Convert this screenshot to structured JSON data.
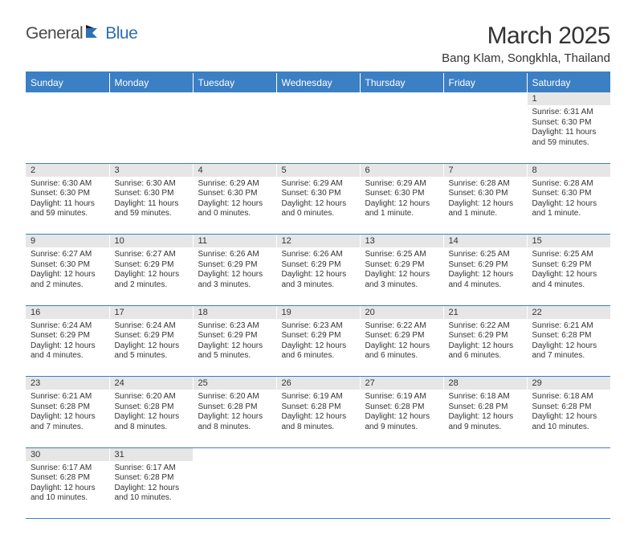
{
  "logo": {
    "text1": "General",
    "text2": "Blue"
  },
  "title": "March 2025",
  "location": "Bang Klam, Songkhla, Thailand",
  "colors": {
    "header_bg": "#3b7fc4",
    "header_text": "#ffffff",
    "daynum_bg": "#e6e6e6",
    "text": "#333333",
    "divider": "#3b7fc4",
    "logo_gray": "#4a4a4a",
    "logo_blue": "#2e6fb5"
  },
  "weekdays": [
    "Sunday",
    "Monday",
    "Tuesday",
    "Wednesday",
    "Thursday",
    "Friday",
    "Saturday"
  ],
  "grid": {
    "first_weekday_index": 6,
    "days_in_month": 31
  },
  "days": {
    "1": {
      "sunrise": "6:31 AM",
      "sunset": "6:30 PM",
      "daylight": "11 hours and 59 minutes."
    },
    "2": {
      "sunrise": "6:30 AM",
      "sunset": "6:30 PM",
      "daylight": "11 hours and 59 minutes."
    },
    "3": {
      "sunrise": "6:30 AM",
      "sunset": "6:30 PM",
      "daylight": "11 hours and 59 minutes."
    },
    "4": {
      "sunrise": "6:29 AM",
      "sunset": "6:30 PM",
      "daylight": "12 hours and 0 minutes."
    },
    "5": {
      "sunrise": "6:29 AM",
      "sunset": "6:30 PM",
      "daylight": "12 hours and 0 minutes."
    },
    "6": {
      "sunrise": "6:29 AM",
      "sunset": "6:30 PM",
      "daylight": "12 hours and 1 minute."
    },
    "7": {
      "sunrise": "6:28 AM",
      "sunset": "6:30 PM",
      "daylight": "12 hours and 1 minute."
    },
    "8": {
      "sunrise": "6:28 AM",
      "sunset": "6:30 PM",
      "daylight": "12 hours and 1 minute."
    },
    "9": {
      "sunrise": "6:27 AM",
      "sunset": "6:30 PM",
      "daylight": "12 hours and 2 minutes."
    },
    "10": {
      "sunrise": "6:27 AM",
      "sunset": "6:29 PM",
      "daylight": "12 hours and 2 minutes."
    },
    "11": {
      "sunrise": "6:26 AM",
      "sunset": "6:29 PM",
      "daylight": "12 hours and 3 minutes."
    },
    "12": {
      "sunrise": "6:26 AM",
      "sunset": "6:29 PM",
      "daylight": "12 hours and 3 minutes."
    },
    "13": {
      "sunrise": "6:25 AM",
      "sunset": "6:29 PM",
      "daylight": "12 hours and 3 minutes."
    },
    "14": {
      "sunrise": "6:25 AM",
      "sunset": "6:29 PM",
      "daylight": "12 hours and 4 minutes."
    },
    "15": {
      "sunrise": "6:25 AM",
      "sunset": "6:29 PM",
      "daylight": "12 hours and 4 minutes."
    },
    "16": {
      "sunrise": "6:24 AM",
      "sunset": "6:29 PM",
      "daylight": "12 hours and 4 minutes."
    },
    "17": {
      "sunrise": "6:24 AM",
      "sunset": "6:29 PM",
      "daylight": "12 hours and 5 minutes."
    },
    "18": {
      "sunrise": "6:23 AM",
      "sunset": "6:29 PM",
      "daylight": "12 hours and 5 minutes."
    },
    "19": {
      "sunrise": "6:23 AM",
      "sunset": "6:29 PM",
      "daylight": "12 hours and 6 minutes."
    },
    "20": {
      "sunrise": "6:22 AM",
      "sunset": "6:29 PM",
      "daylight": "12 hours and 6 minutes."
    },
    "21": {
      "sunrise": "6:22 AM",
      "sunset": "6:29 PM",
      "daylight": "12 hours and 6 minutes."
    },
    "22": {
      "sunrise": "6:21 AM",
      "sunset": "6:28 PM",
      "daylight": "12 hours and 7 minutes."
    },
    "23": {
      "sunrise": "6:21 AM",
      "sunset": "6:28 PM",
      "daylight": "12 hours and 7 minutes."
    },
    "24": {
      "sunrise": "6:20 AM",
      "sunset": "6:28 PM",
      "daylight": "12 hours and 8 minutes."
    },
    "25": {
      "sunrise": "6:20 AM",
      "sunset": "6:28 PM",
      "daylight": "12 hours and 8 minutes."
    },
    "26": {
      "sunrise": "6:19 AM",
      "sunset": "6:28 PM",
      "daylight": "12 hours and 8 minutes."
    },
    "27": {
      "sunrise": "6:19 AM",
      "sunset": "6:28 PM",
      "daylight": "12 hours and 9 minutes."
    },
    "28": {
      "sunrise": "6:18 AM",
      "sunset": "6:28 PM",
      "daylight": "12 hours and 9 minutes."
    },
    "29": {
      "sunrise": "6:18 AM",
      "sunset": "6:28 PM",
      "daylight": "12 hours and 10 minutes."
    },
    "30": {
      "sunrise": "6:17 AM",
      "sunset": "6:28 PM",
      "daylight": "12 hours and 10 minutes."
    },
    "31": {
      "sunrise": "6:17 AM",
      "sunset": "6:28 PM",
      "daylight": "12 hours and 10 minutes."
    }
  },
  "labels": {
    "sunrise_prefix": "Sunrise: ",
    "sunset_prefix": "Sunset: ",
    "daylight_prefix": "Daylight: "
  }
}
